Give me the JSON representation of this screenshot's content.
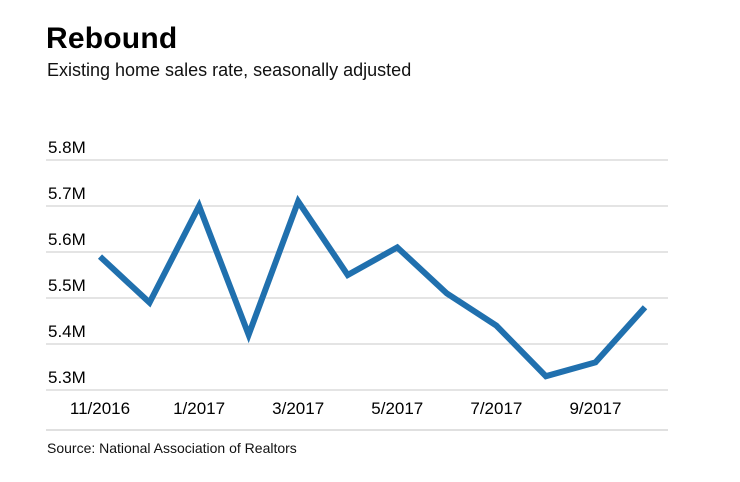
{
  "header": {
    "title": "Rebound",
    "subtitle": "Existing home sales rate, seasonally adjusted"
  },
  "footer": {
    "source": "Source: National Association of Realtors"
  },
  "chart_data": {
    "type": "line",
    "title": "Rebound",
    "subtitle": "Existing home sales rate, seasonally adjusted",
    "x": [
      "11/2016",
      "12/2016",
      "1/2017",
      "2/2017",
      "3/2017",
      "4/2017",
      "5/2017",
      "6/2017",
      "7/2017",
      "8/2017",
      "9/2017",
      "10/2017"
    ],
    "values": [
      5.59,
      5.49,
      5.7,
      5.42,
      5.71,
      5.55,
      5.61,
      5.51,
      5.44,
      5.33,
      5.36,
      5.48
    ],
    "x_tick_label_every": 2,
    "y_ticks": [
      5.8,
      5.7,
      5.6,
      5.5,
      5.4,
      5.3
    ],
    "y_tick_labels": [
      "5.8M",
      "5.7M",
      "5.6M",
      "5.5M",
      "5.4M",
      "5.3M"
    ],
    "ylim": [
      5.3,
      5.8
    ],
    "grid": "horizontal-only",
    "legend": "none",
    "line_color": "#2070ae",
    "grid_color": "#c8c8c8",
    "baseline_color": "#c0c0c0",
    "text_color": "#000000"
  }
}
